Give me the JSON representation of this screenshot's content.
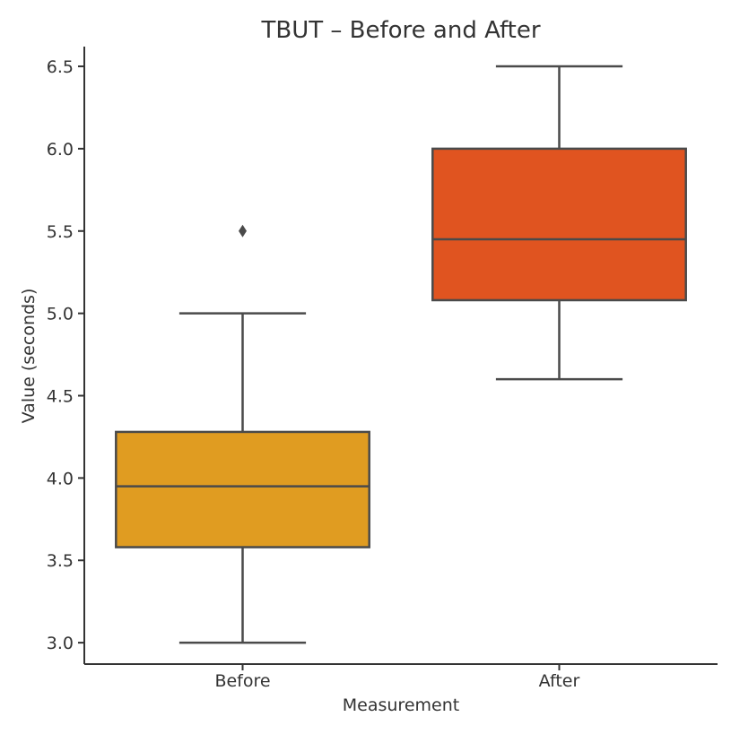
{
  "chart_data": {
    "type": "box",
    "title": "TBUT – Before and After",
    "xlabel": "Measurement",
    "ylabel": "Value (seconds)",
    "ylim": [
      2.87,
      6.62
    ],
    "yticks": [
      "3.0",
      "3.5",
      "4.0",
      "4.5",
      "5.0",
      "5.5",
      "6.0",
      "6.5"
    ],
    "grid": false,
    "categories": [
      "Before",
      "After"
    ],
    "boxes": [
      {
        "category": "Before",
        "whisker_low": 3.0,
        "q1": 3.58,
        "median": 3.95,
        "q3": 4.28,
        "whisker_high": 5.0,
        "outliers": [
          5.5
        ],
        "color": "#E09C21"
      },
      {
        "category": "After",
        "whisker_low": 4.6,
        "q1": 5.08,
        "median": 5.45,
        "q3": 6.0,
        "whisker_high": 6.5,
        "outliers": [],
        "color": "#E05420"
      }
    ]
  }
}
